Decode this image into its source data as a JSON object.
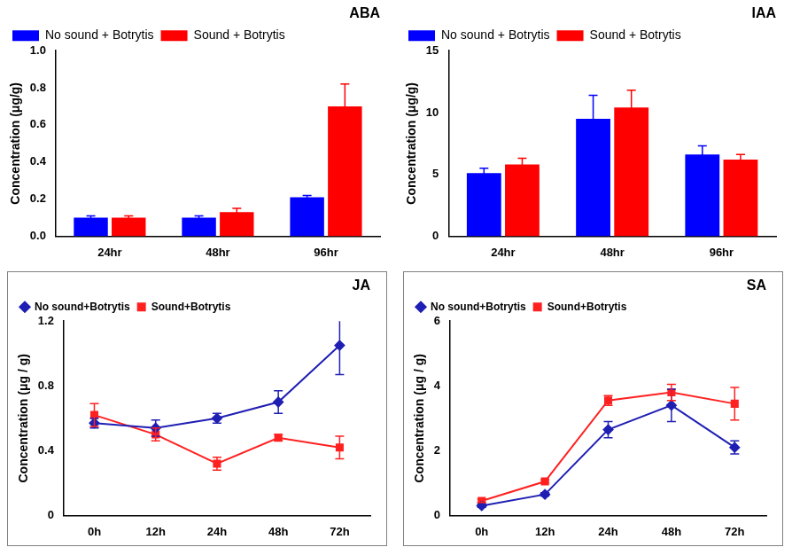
{
  "chart_data": [
    {
      "type": "bar",
      "title": "ABA",
      "categories": [
        "24hr",
        "48hr",
        "96hr"
      ],
      "series": [
        {
          "name": "No sound + Botrytis",
          "color": "#0000ff",
          "values": [
            0.1,
            0.1,
            0.21
          ],
          "errors": [
            0.01,
            0.01,
            0.01
          ]
        },
        {
          "name": "Sound + Botrytis",
          "color": "#ff0000",
          "values": [
            0.1,
            0.13,
            0.7
          ],
          "errors": [
            0.01,
            0.02,
            0.12
          ]
        }
      ],
      "y_label": "Concentration (μg/g)",
      "ylim": [
        0,
        1
      ],
      "yticks": [
        {
          "value": 0,
          "label": "0.0"
        },
        0.2,
        0.4,
        0.6,
        0.8,
        {
          "value": 1,
          "label": "1.0"
        }
      ],
      "grid": false,
      "legend": "upper left"
    },
    {
      "type": "bar",
      "title": "IAA",
      "categories": [
        "24hr",
        "48hr",
        "96hr"
      ],
      "series": [
        {
          "name": "No sound + Botrytis",
          "color": "#0000ff",
          "values": [
            5.1,
            9.5,
            6.6
          ],
          "errors": [
            0.4,
            1.9,
            0.7
          ]
        },
        {
          "name": "Sound + Botrytis",
          "color": "#ff0000",
          "values": [
            5.8,
            10.4,
            6.2
          ],
          "errors": [
            0.5,
            1.4,
            0.4
          ]
        }
      ],
      "y_label": "Concentration (μg/g)",
      "ylim": [
        0,
        15
      ],
      "yticks": [
        0,
        5,
        10,
        15
      ],
      "grid": false,
      "legend": "upper left"
    },
    {
      "type": "line",
      "title": "JA",
      "categories": [
        "0h",
        "12h",
        "24h",
        "48h",
        "72h"
      ],
      "series": [
        {
          "name": "No sound+Botrytis",
          "color": "#1f1fb4",
          "marker": "diamond",
          "line_style": "solid",
          "values": [
            0.57,
            0.54,
            0.6,
            0.7,
            1.05
          ],
          "errors": [
            0.03,
            0.05,
            0.03,
            0.07,
            0.18
          ]
        },
        {
          "name": "Sound+Botrytis",
          "color": "#ff2020",
          "marker": "square",
          "line_style": "solid",
          "values": [
            0.62,
            0.5,
            0.32,
            0.48,
            0.42
          ],
          "errors": [
            0.07,
            0.04,
            0.04,
            0.02,
            0.07
          ]
        }
      ],
      "y_label": "Concentration (μg / g)",
      "ylim": [
        0,
        1.2
      ],
      "yticks": [
        0,
        0.4,
        0.8,
        1.2
      ],
      "grid": false,
      "legend": "upper left"
    },
    {
      "type": "line",
      "title": "SA",
      "categories": [
        "0h",
        "12h",
        "24h",
        "48h",
        "72h"
      ],
      "series": [
        {
          "name": "No sound+Botrytis",
          "color": "#1f1fb4",
          "marker": "diamond",
          "line_style": "solid",
          "values": [
            0.3,
            0.65,
            2.65,
            3.4,
            2.1
          ],
          "errors": [
            0.05,
            0.05,
            0.25,
            0.5,
            0.2
          ]
        },
        {
          "name": "Sound+Botrytis",
          "color": "#ff2020",
          "marker": "square",
          "line_style": "solid",
          "values": [
            0.45,
            1.05,
            3.55,
            3.8,
            3.45
          ],
          "errors": [
            0.05,
            0.05,
            0.15,
            0.25,
            0.5
          ]
        }
      ],
      "y_label": "Concentration (μg / g)",
      "ylim": [
        0,
        6
      ],
      "yticks": [
        0,
        2,
        4,
        6
      ],
      "grid": false,
      "legend": "upper left"
    }
  ]
}
